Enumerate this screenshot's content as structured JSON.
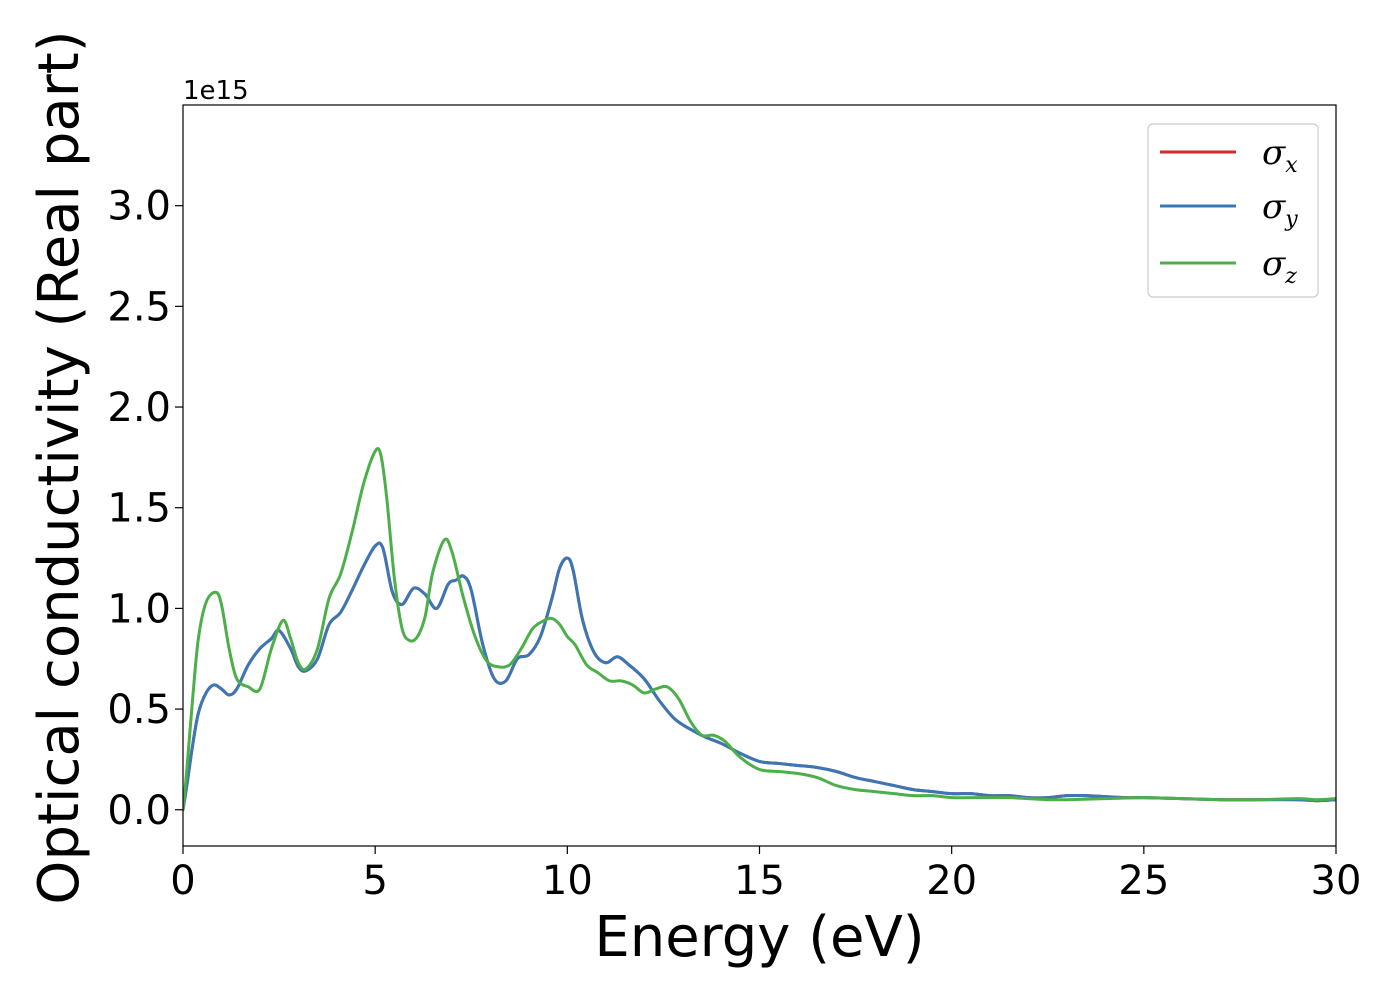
{
  "chart_data": {
    "type": "line",
    "xlabel": "Energy (eV)",
    "ylabel": "Optical conductivity (Real part)",
    "y_offset_label": "1e15",
    "xlim": [
      0,
      30
    ],
    "ylim": [
      -0.18,
      3.5
    ],
    "x_ticks": [
      0,
      5,
      10,
      15,
      20,
      25,
      30
    ],
    "x_tick_labels": [
      "0",
      "5",
      "10",
      "15",
      "20",
      "25",
      "30"
    ],
    "y_ticks": [
      0.0,
      0.5,
      1.0,
      1.5,
      2.0,
      2.5,
      3.0
    ],
    "y_tick_labels": [
      "0.0",
      "0.5",
      "1.0",
      "1.5",
      "2.0",
      "2.5",
      "3.0"
    ],
    "grid": false,
    "legend_position": "top-right",
    "series": [
      {
        "name": "σx",
        "symbol": "σ",
        "subscript": "x",
        "color": "#d62728",
        "x": [
          0,
          0.1,
          0.25,
          0.4,
          0.6,
          0.8,
          1.0,
          1.2,
          1.4,
          1.7,
          2.0,
          2.3,
          2.5,
          2.8,
          3.0,
          3.2,
          3.5,
          3.8,
          4.1,
          4.4,
          4.7,
          5.0,
          5.2,
          5.45,
          5.7,
          6.0,
          6.3,
          6.6,
          6.9,
          7.1,
          7.3,
          7.5,
          7.8,
          8.1,
          8.4,
          8.7,
          9.0,
          9.3,
          9.6,
          9.8,
          10.0,
          10.15,
          10.4,
          10.7,
          11.0,
          11.3,
          11.6,
          12.0,
          12.4,
          12.8,
          13.2,
          13.6,
          14.0,
          14.5,
          15.0,
          15.5,
          16.0,
          16.5,
          17.0,
          17.5,
          18.0,
          18.5,
          19.0,
          19.5,
          20.0,
          20.5,
          21.0,
          21.5,
          22.0,
          22.5,
          23.0,
          23.5,
          24.0,
          24.5,
          25.0,
          26.0,
          27.0,
          28.0,
          29.0,
          29.5,
          30.0
        ],
        "y": [
          0.0,
          0.12,
          0.32,
          0.48,
          0.58,
          0.62,
          0.6,
          0.57,
          0.6,
          0.72,
          0.8,
          0.85,
          0.89,
          0.8,
          0.71,
          0.69,
          0.75,
          0.92,
          0.98,
          1.09,
          1.21,
          1.31,
          1.3,
          1.08,
          1.02,
          1.1,
          1.07,
          1.0,
          1.12,
          1.14,
          1.16,
          1.09,
          0.82,
          0.65,
          0.64,
          0.75,
          0.77,
          0.86,
          1.05,
          1.2,
          1.25,
          1.19,
          0.94,
          0.78,
          0.73,
          0.76,
          0.72,
          0.65,
          0.54,
          0.45,
          0.4,
          0.36,
          0.33,
          0.28,
          0.24,
          0.23,
          0.22,
          0.21,
          0.19,
          0.16,
          0.14,
          0.12,
          0.1,
          0.09,
          0.08,
          0.08,
          0.07,
          0.07,
          0.06,
          0.06,
          0.07,
          0.07,
          0.065,
          0.06,
          0.06,
          0.055,
          0.05,
          0.05,
          0.05,
          0.045,
          0.05
        ]
      },
      {
        "name": "σy",
        "symbol": "σ",
        "subscript": "y",
        "color": "#3a78b5",
        "x": [
          0,
          0.1,
          0.25,
          0.4,
          0.6,
          0.8,
          1.0,
          1.2,
          1.4,
          1.7,
          2.0,
          2.3,
          2.5,
          2.8,
          3.0,
          3.2,
          3.5,
          3.8,
          4.1,
          4.4,
          4.7,
          5.0,
          5.2,
          5.45,
          5.7,
          6.0,
          6.3,
          6.6,
          6.9,
          7.1,
          7.3,
          7.5,
          7.8,
          8.1,
          8.4,
          8.7,
          9.0,
          9.3,
          9.6,
          9.8,
          10.0,
          10.15,
          10.4,
          10.7,
          11.0,
          11.3,
          11.6,
          12.0,
          12.4,
          12.8,
          13.2,
          13.6,
          14.0,
          14.5,
          15.0,
          15.5,
          16.0,
          16.5,
          17.0,
          17.5,
          18.0,
          18.5,
          19.0,
          19.5,
          20.0,
          20.5,
          21.0,
          21.5,
          22.0,
          22.5,
          23.0,
          23.5,
          24.0,
          24.5,
          25.0,
          26.0,
          27.0,
          28.0,
          29.0,
          29.5,
          30.0
        ],
        "y": [
          0.0,
          0.12,
          0.32,
          0.48,
          0.58,
          0.62,
          0.6,
          0.57,
          0.6,
          0.72,
          0.8,
          0.85,
          0.89,
          0.8,
          0.71,
          0.69,
          0.75,
          0.92,
          0.98,
          1.09,
          1.21,
          1.31,
          1.3,
          1.08,
          1.02,
          1.1,
          1.07,
          1.0,
          1.12,
          1.14,
          1.16,
          1.09,
          0.82,
          0.65,
          0.64,
          0.75,
          0.77,
          0.86,
          1.05,
          1.2,
          1.25,
          1.19,
          0.94,
          0.78,
          0.73,
          0.76,
          0.72,
          0.65,
          0.54,
          0.45,
          0.4,
          0.36,
          0.33,
          0.28,
          0.24,
          0.23,
          0.22,
          0.21,
          0.19,
          0.16,
          0.14,
          0.12,
          0.1,
          0.09,
          0.08,
          0.08,
          0.07,
          0.07,
          0.06,
          0.06,
          0.07,
          0.07,
          0.065,
          0.06,
          0.06,
          0.055,
          0.05,
          0.05,
          0.05,
          0.045,
          0.05
        ]
      },
      {
        "name": "σz",
        "symbol": "σ",
        "subscript": "z",
        "color": "#4daf4a",
        "x": [
          0,
          0.1,
          0.25,
          0.4,
          0.6,
          0.85,
          1.0,
          1.2,
          1.4,
          1.7,
          2.0,
          2.3,
          2.6,
          2.8,
          3.0,
          3.2,
          3.5,
          3.8,
          4.1,
          4.4,
          4.7,
          5.0,
          5.15,
          5.3,
          5.5,
          5.7,
          5.9,
          6.1,
          6.3,
          6.5,
          6.8,
          7.0,
          7.3,
          7.6,
          7.9,
          8.2,
          8.5,
          8.8,
          9.1,
          9.4,
          9.6,
          9.8,
          10.0,
          10.2,
          10.5,
          10.8,
          11.1,
          11.4,
          11.7,
          12.0,
          12.3,
          12.6,
          12.9,
          13.2,
          13.5,
          13.8,
          14.1,
          14.5,
          15.0,
          15.5,
          16.0,
          16.5,
          17.0,
          17.5,
          18.0,
          18.5,
          19.0,
          19.5,
          20.0,
          20.5,
          21.0,
          21.5,
          22.0,
          22.5,
          23.0,
          24.0,
          25.0,
          26.0,
          27.0,
          28.0,
          29.0,
          29.5,
          30.0
        ],
        "y": [
          0.0,
          0.2,
          0.55,
          0.85,
          1.03,
          1.08,
          1.02,
          0.8,
          0.65,
          0.61,
          0.6,
          0.8,
          0.94,
          0.85,
          0.73,
          0.7,
          0.8,
          1.05,
          1.17,
          1.38,
          1.62,
          1.78,
          1.76,
          1.55,
          1.15,
          0.9,
          0.84,
          0.86,
          0.96,
          1.18,
          1.34,
          1.28,
          1.05,
          0.86,
          0.74,
          0.71,
          0.72,
          0.8,
          0.9,
          0.94,
          0.95,
          0.92,
          0.86,
          0.82,
          0.72,
          0.68,
          0.64,
          0.64,
          0.62,
          0.58,
          0.6,
          0.61,
          0.55,
          0.44,
          0.37,
          0.37,
          0.34,
          0.26,
          0.2,
          0.19,
          0.18,
          0.16,
          0.12,
          0.1,
          0.09,
          0.08,
          0.07,
          0.07,
          0.06,
          0.06,
          0.06,
          0.06,
          0.055,
          0.05,
          0.05,
          0.055,
          0.06,
          0.055,
          0.05,
          0.05,
          0.055,
          0.05,
          0.055
        ]
      }
    ]
  }
}
